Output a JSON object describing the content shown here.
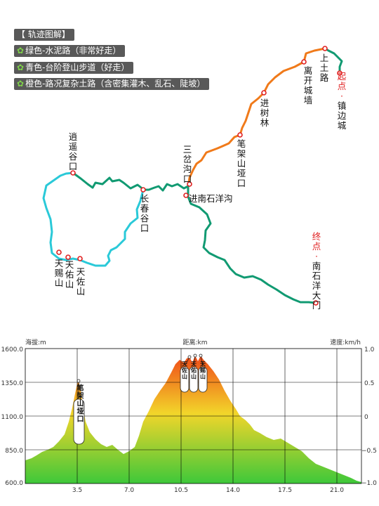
{
  "legend": {
    "title": "【 轨迹图解】",
    "items": [
      {
        "text": "绿色-水泥路（非常好走）",
        "color": "#119a72"
      },
      {
        "text": "青色-台阶登山步道（好走）",
        "color": "#2ac9d8"
      },
      {
        "text": "橙色-路况复杂土路（含密集灌木、乱石、陡坡）",
        "color": "#f07a1a"
      }
    ]
  },
  "waypoints": {
    "start_prefix": "起点·",
    "start": "镇边城",
    "shangtu": "上土路",
    "likai": "离开城墙",
    "jinshu": "进树林",
    "bijia": "笔架山垭口",
    "sancha": "三岔沟口",
    "jinnan": "进南石洋沟",
    "changchun": "长春谷口",
    "xiaoyao": "逍遥谷口",
    "tianci": "天赐山",
    "tianyou": "天佑山",
    "tianzuo": "天佐山",
    "end_prefix": "终点·",
    "end": "南石洋大门"
  },
  "profile": {
    "left_title": "海拔:m",
    "center_title": "距离:km",
    "right_title": "速度:km/h",
    "y_ticks": [
      "1600.0",
      "1350.0",
      "1100.0",
      "850.0",
      "600.0"
    ],
    "x_ticks": [
      "3.5",
      "7.0",
      "10.5",
      "14.0",
      "17.5",
      "21.0"
    ],
    "speed_ticks": [
      "1.0",
      "0.5",
      "0",
      "−0.5",
      "−1.0"
    ],
    "peak_labels": {
      "bijia": "笔架山垭口",
      "tianzuo": "天佐山",
      "tianyou": "天佑山",
      "tianci": "天赐山"
    },
    "colors": {
      "top": "#f04a18",
      "mid": "#f2d52a",
      "bottom": "#3ec83a"
    }
  }
}
